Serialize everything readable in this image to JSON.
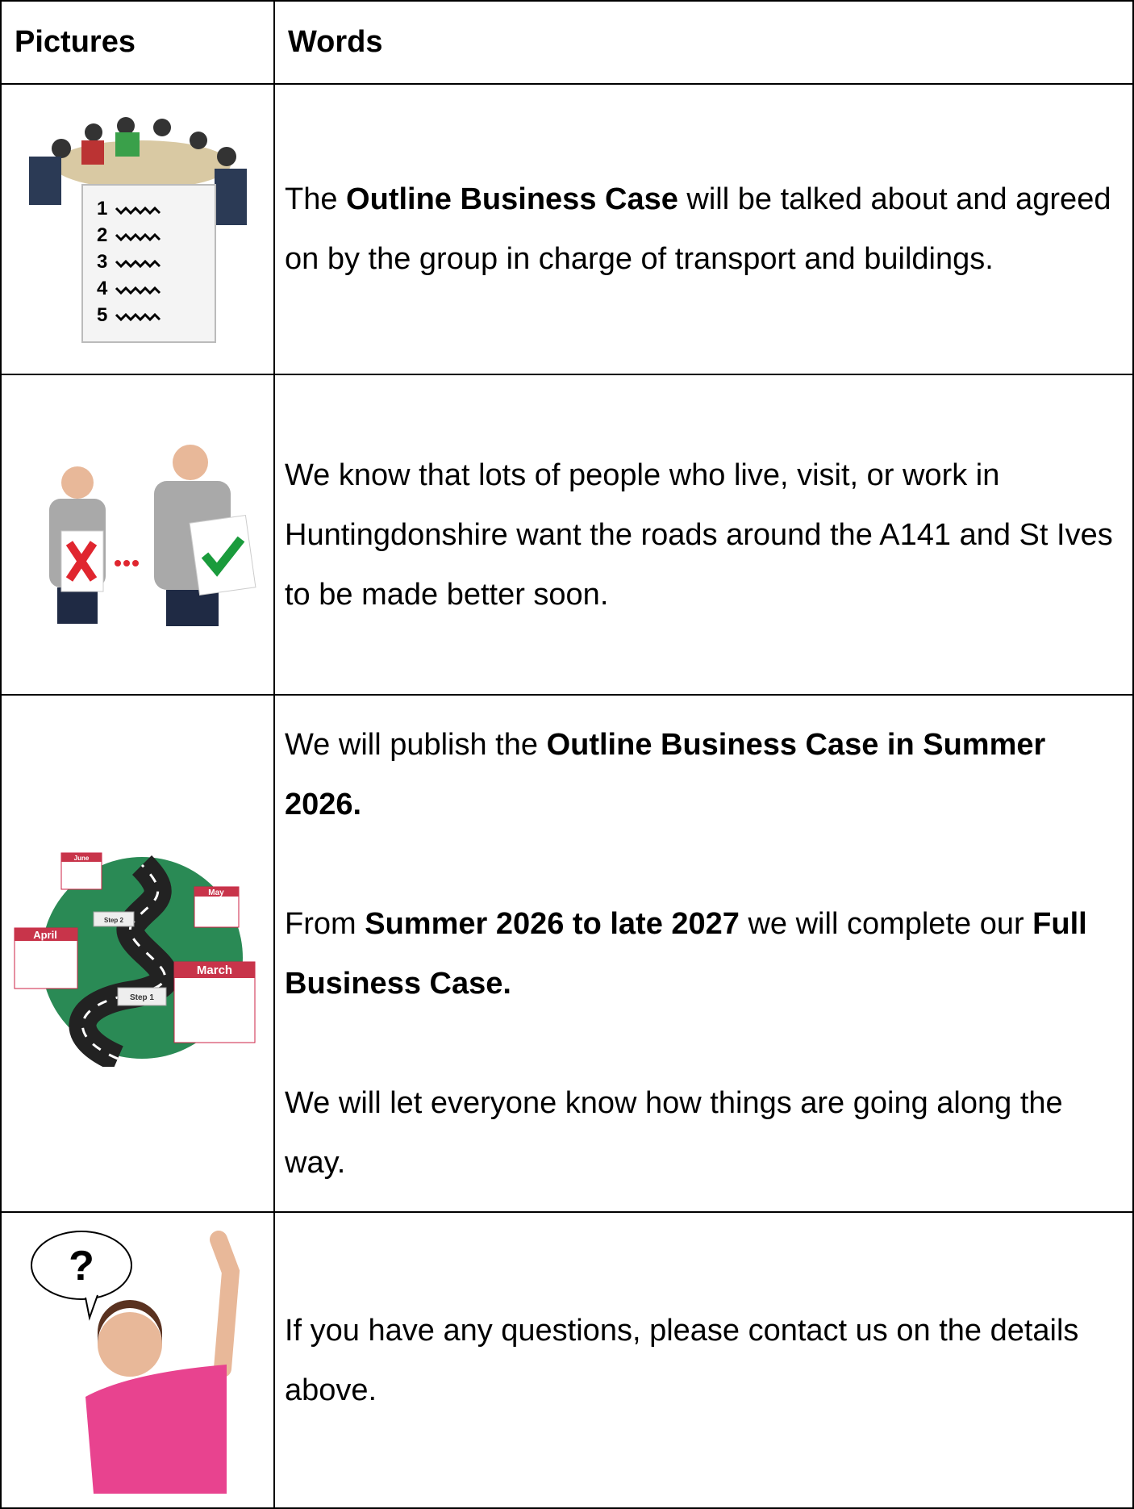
{
  "header": {
    "pictures": "Pictures",
    "words": "Words"
  },
  "rows": [
    {
      "picture_labels": [
        "1",
        "2",
        "3",
        "4",
        "5"
      ],
      "paragraphs": [
        [
          {
            "text": "The ",
            "bold": false
          },
          {
            "text": "Outline Business Case",
            "bold": true
          },
          {
            "text": " will be talked about and agreed on by the group in charge of transport and buildings.",
            "bold": false
          }
        ]
      ]
    },
    {
      "picture_labels": [],
      "paragraphs": [
        [
          {
            "text": "We know that lots of people who live, visit, or work in Huntingdonshire want the roads around the A141 and St Ives to be made better soon.",
            "bold": false
          }
        ]
      ]
    },
    {
      "picture_labels": [
        "June",
        "May",
        "April",
        "March",
        "Step 1",
        "Step 2"
      ],
      "paragraphs": [
        [
          {
            "text": "We will publish the ",
            "bold": false
          },
          {
            "text": "Outline Business Case in Summer 2026.",
            "bold": true
          }
        ],
        [
          {
            "text": "From ",
            "bold": false
          },
          {
            "text": "Summer 2026 to late 2027",
            "bold": true
          },
          {
            "text": " we will complete our ",
            "bold": false
          },
          {
            "text": "Full Business Case.",
            "bold": true
          }
        ],
        [
          {
            "text": "We will let everyone know how things are going along the way.",
            "bold": false
          }
        ]
      ]
    },
    {
      "picture_labels": [
        "?"
      ],
      "paragraphs": [
        [
          {
            "text": "If you have any questions, please contact us on the details above.",
            "bold": false
          }
        ]
      ]
    }
  ]
}
